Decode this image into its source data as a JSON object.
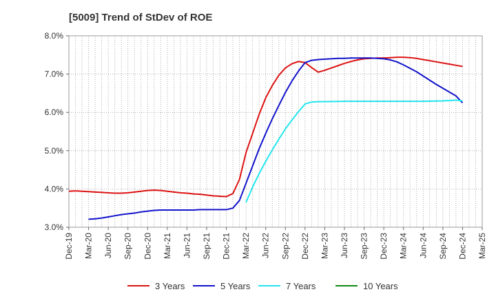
{
  "chart_data": {
    "type": "line",
    "title": "[5009]  Trend of StDev of ROE",
    "xlabel": "",
    "ylabel": "",
    "x_ticks": [
      "Dec-19",
      "Mar-20",
      "Jun-20",
      "Sep-20",
      "Dec-20",
      "Mar-21",
      "Jun-21",
      "Sep-21",
      "Dec-21",
      "Mar-22",
      "Jun-22",
      "Sep-22",
      "Dec-22",
      "Mar-23",
      "Jun-23",
      "Sep-23",
      "Dec-23",
      "Mar-24",
      "Jun-24",
      "Sep-24",
      "Dec-24",
      "Mar-25"
    ],
    "y_ticks": [
      "3.0%",
      "4.0%",
      "5.0%",
      "6.0%",
      "7.0%",
      "8.0%"
    ],
    "ylim": [
      3.0,
      8.0
    ],
    "grid": true,
    "legend_position": "bottom",
    "series": [
      {
        "name": "3 Years",
        "color": "#dd1111",
        "points": [
          [
            "Dec-19",
            3.94
          ],
          [
            "Jan-20",
            3.95
          ],
          [
            "Feb-20",
            3.94
          ],
          [
            "Mar-20",
            3.93
          ],
          [
            "Apr-20",
            3.92
          ],
          [
            "May-20",
            3.91
          ],
          [
            "Jun-20",
            3.9
          ],
          [
            "Jul-20",
            3.89
          ],
          [
            "Aug-20",
            3.89
          ],
          [
            "Sep-20",
            3.9
          ],
          [
            "Oct-20",
            3.92
          ],
          [
            "Nov-20",
            3.94
          ],
          [
            "Dec-20",
            3.96
          ],
          [
            "Jan-21",
            3.97
          ],
          [
            "Feb-21",
            3.96
          ],
          [
            "Mar-21",
            3.94
          ],
          [
            "Apr-21",
            3.92
          ],
          [
            "May-21",
            3.9
          ],
          [
            "Jun-21",
            3.89
          ],
          [
            "Jul-21",
            3.87
          ],
          [
            "Aug-21",
            3.86
          ],
          [
            "Sep-21",
            3.84
          ],
          [
            "Oct-21",
            3.82
          ],
          [
            "Nov-21",
            3.81
          ],
          [
            "Dec-21",
            3.8
          ],
          [
            "Jan-22",
            3.88
          ],
          [
            "Feb-22",
            4.25
          ],
          [
            "Mar-22",
            4.95
          ],
          [
            "Apr-22",
            5.45
          ],
          [
            "May-22",
            5.95
          ],
          [
            "Jun-22",
            6.38
          ],
          [
            "Jul-22",
            6.7
          ],
          [
            "Aug-22",
            6.97
          ],
          [
            "Sep-22",
            7.16
          ],
          [
            "Oct-22",
            7.27
          ],
          [
            "Nov-22",
            7.33
          ],
          [
            "Dec-22",
            7.3
          ],
          [
            "Jan-23",
            7.17
          ],
          [
            "Feb-23",
            7.05
          ],
          [
            "Mar-23",
            7.1
          ],
          [
            "Apr-23",
            7.16
          ],
          [
            "May-23",
            7.22
          ],
          [
            "Jun-23",
            7.28
          ],
          [
            "Jul-23",
            7.33
          ],
          [
            "Aug-23",
            7.37
          ],
          [
            "Sep-23",
            7.4
          ],
          [
            "Oct-23",
            7.41
          ],
          [
            "Nov-23",
            7.42
          ],
          [
            "Dec-23",
            7.42
          ],
          [
            "Jan-24",
            7.43
          ],
          [
            "Feb-24",
            7.44
          ],
          [
            "Mar-24",
            7.44
          ],
          [
            "Apr-24",
            7.43
          ],
          [
            "May-24",
            7.41
          ],
          [
            "Jun-24",
            7.38
          ],
          [
            "Jul-24",
            7.35
          ],
          [
            "Aug-24",
            7.32
          ],
          [
            "Sep-24",
            7.29
          ],
          [
            "Oct-24",
            7.26
          ],
          [
            "Nov-24",
            7.23
          ],
          [
            "Dec-24",
            7.2
          ]
        ]
      },
      {
        "name": "5 Years",
        "color": "#1111cc",
        "points": [
          [
            "Mar-20",
            3.21
          ],
          [
            "Apr-20",
            3.22
          ],
          [
            "May-20",
            3.24
          ],
          [
            "Jun-20",
            3.27
          ],
          [
            "Jul-20",
            3.3
          ],
          [
            "Aug-20",
            3.33
          ],
          [
            "Sep-20",
            3.35
          ],
          [
            "Oct-20",
            3.37
          ],
          [
            "Nov-20",
            3.4
          ],
          [
            "Dec-20",
            3.42
          ],
          [
            "Jan-21",
            3.44
          ],
          [
            "Feb-21",
            3.45
          ],
          [
            "Mar-21",
            3.45
          ],
          [
            "Apr-21",
            3.45
          ],
          [
            "May-21",
            3.45
          ],
          [
            "Jun-21",
            3.45
          ],
          [
            "Jul-21",
            3.45
          ],
          [
            "Aug-21",
            3.46
          ],
          [
            "Sep-21",
            3.46
          ],
          [
            "Oct-21",
            3.46
          ],
          [
            "Nov-21",
            3.46
          ],
          [
            "Dec-21",
            3.46
          ],
          [
            "Jan-22",
            3.5
          ],
          [
            "Feb-22",
            3.7
          ],
          [
            "Mar-22",
            4.15
          ],
          [
            "Apr-22",
            4.6
          ],
          [
            "May-22",
            5.05
          ],
          [
            "Jun-22",
            5.45
          ],
          [
            "Jul-22",
            5.83
          ],
          [
            "Aug-22",
            6.18
          ],
          [
            "Sep-22",
            6.52
          ],
          [
            "Oct-22",
            6.82
          ],
          [
            "Nov-22",
            7.08
          ],
          [
            "Dec-22",
            7.3
          ],
          [
            "Jan-23",
            7.36
          ],
          [
            "Feb-23",
            7.38
          ],
          [
            "Mar-23",
            7.39
          ],
          [
            "Apr-23",
            7.4
          ],
          [
            "May-23",
            7.41
          ],
          [
            "Jun-23",
            7.41
          ],
          [
            "Jul-23",
            7.42
          ],
          [
            "Aug-23",
            7.42
          ],
          [
            "Sep-23",
            7.42
          ],
          [
            "Oct-23",
            7.42
          ],
          [
            "Nov-23",
            7.41
          ],
          [
            "Dec-23",
            7.4
          ],
          [
            "Jan-24",
            7.37
          ],
          [
            "Feb-24",
            7.32
          ],
          [
            "Mar-24",
            7.24
          ],
          [
            "Apr-24",
            7.15
          ],
          [
            "May-24",
            7.06
          ],
          [
            "Jun-24",
            6.95
          ],
          [
            "Jul-24",
            6.84
          ],
          [
            "Aug-24",
            6.73
          ],
          [
            "Sep-24",
            6.63
          ],
          [
            "Oct-24",
            6.53
          ],
          [
            "Nov-24",
            6.43
          ],
          [
            "Dec-24",
            6.25
          ]
        ]
      },
      {
        "name": "7 Years",
        "color": "#22e5ee",
        "points": [
          [
            "Mar-22",
            3.65
          ],
          [
            "Apr-22",
            4.05
          ],
          [
            "May-22",
            4.4
          ],
          [
            "Jun-22",
            4.72
          ],
          [
            "Jul-22",
            5.02
          ],
          [
            "Aug-22",
            5.3
          ],
          [
            "Sep-22",
            5.57
          ],
          [
            "Oct-22",
            5.8
          ],
          [
            "Nov-22",
            6.02
          ],
          [
            "Dec-22",
            6.22
          ],
          [
            "Jan-23",
            6.27
          ],
          [
            "Feb-23",
            6.28
          ],
          [
            "Mar-23",
            6.28
          ],
          [
            "Jun-23",
            6.29
          ],
          [
            "Sep-23",
            6.29
          ],
          [
            "Dec-23",
            6.29
          ],
          [
            "Mar-24",
            6.29
          ],
          [
            "Jun-24",
            6.29
          ],
          [
            "Sep-24",
            6.3
          ],
          [
            "Oct-24",
            6.31
          ],
          [
            "Nov-24",
            6.32
          ],
          [
            "Dec-24",
            6.3
          ]
        ]
      },
      {
        "name": "10 Years",
        "color": "#118811",
        "points": []
      }
    ]
  }
}
